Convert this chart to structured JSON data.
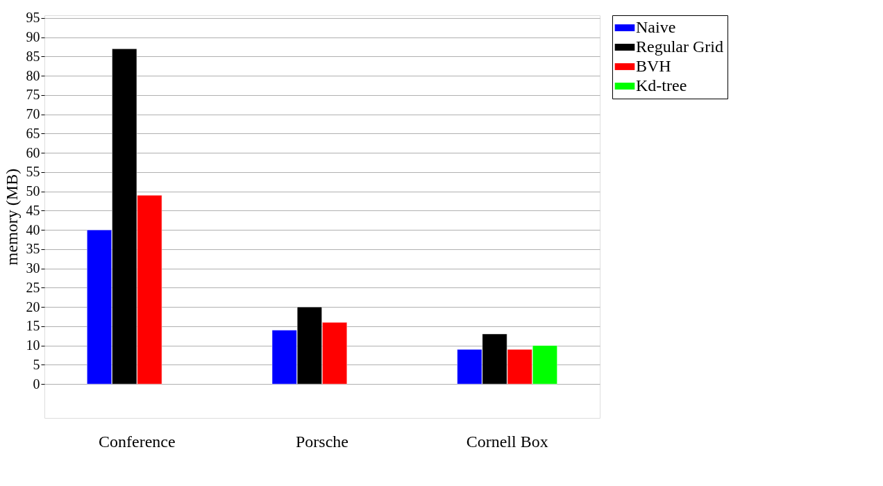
{
  "chart_data": {
    "type": "bar",
    "ylabel": "memory (MB)",
    "categories": [
      "Conference",
      "Porsche",
      "Cornell Box"
    ],
    "series": [
      {
        "name": "Naive",
        "color": "#0000ff",
        "values": [
          40,
          14,
          9
        ]
      },
      {
        "name": "Regular Grid",
        "color": "#000000",
        "values": [
          87,
          20,
          13
        ]
      },
      {
        "name": "BVH",
        "color": "#ff0000",
        "values": [
          49,
          16,
          9
        ]
      },
      {
        "name": "Kd-tree",
        "color": "#00ff00",
        "values": [
          null,
          null,
          10
        ]
      }
    ],
    "ylim": [
      -8.8,
      95.7
    ],
    "yticks": [
      0,
      5,
      10,
      15,
      20,
      25,
      30,
      35,
      40,
      45,
      50,
      55,
      60,
      65,
      70,
      75,
      80,
      85,
      90,
      95
    ],
    "grid": "y",
    "legend": "top right"
  }
}
